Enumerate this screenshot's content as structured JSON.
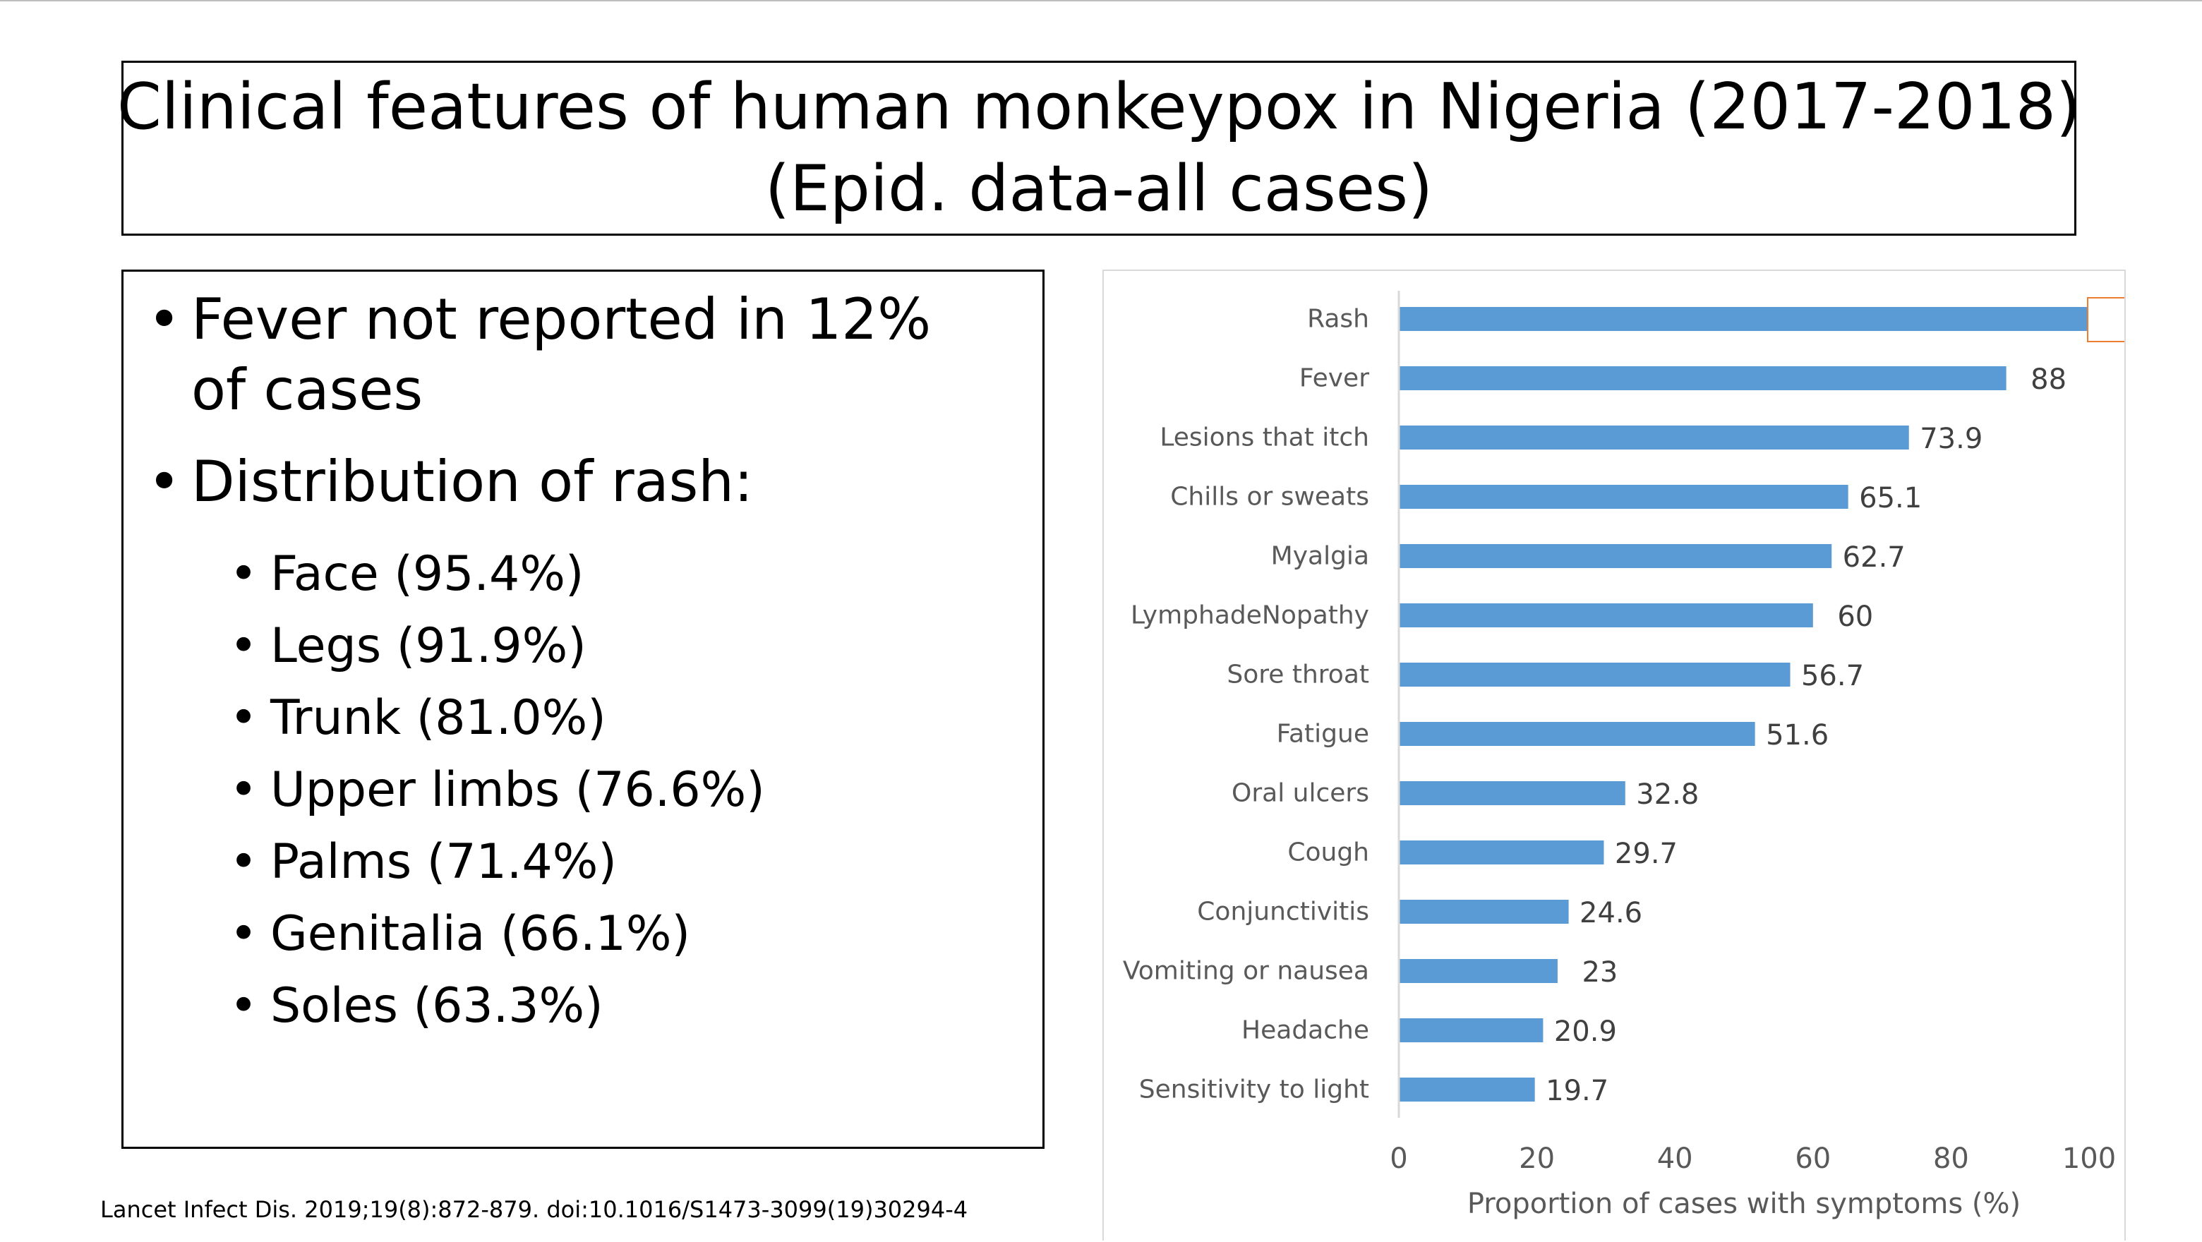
{
  "slide": {
    "title_line1": "Clinical features of human monkeypox in Nigeria (2017-2018)",
    "title_line2": "(Epid. data-all cases)",
    "bullet_fever": "Fever not reported in 12% of cases",
    "bullet_rash": "Distribution of rash:",
    "rash_sites": [
      "Face (95.4%)",
      "Legs (91.9%)",
      "Trunk (81.0%)",
      "Upper limbs (76.6%)",
      "Palms (71.4%)",
      "Genitalia (66.1%)",
      "Soles (63.3%)"
    ],
    "citation": "Lancet Infect Dis. 2019;19(8):872-879.   doi:10.1016/S1473-3099(19)30294-4"
  },
  "chart_data": {
    "type": "bar",
    "orientation": "horizontal",
    "categories": [
      "Rash",
      "Fever",
      "Lesions that itch",
      "Chills or sweats",
      "Myalgia",
      "LymphadeNopathy",
      "Sore throat",
      "Fatigue",
      "Oral ulcers",
      "Cough",
      "Conjunctivitis",
      "Vomiting or nausea",
      "Headache",
      "Sensitivity to light"
    ],
    "values": [
      100,
      88,
      73.9,
      65.1,
      62.7,
      60,
      56.7,
      51.6,
      32.8,
      29.7,
      24.6,
      23,
      20.9,
      19.7
    ],
    "xlabel": "Proportion of cases with symptoms (%)",
    "xlim": [
      0,
      100
    ],
    "xticks": [
      0,
      20,
      40,
      60,
      80,
      100
    ],
    "grid": false,
    "bar_color": "#5b9bd5",
    "highlight_label_border_color": "#ed7d31"
  }
}
